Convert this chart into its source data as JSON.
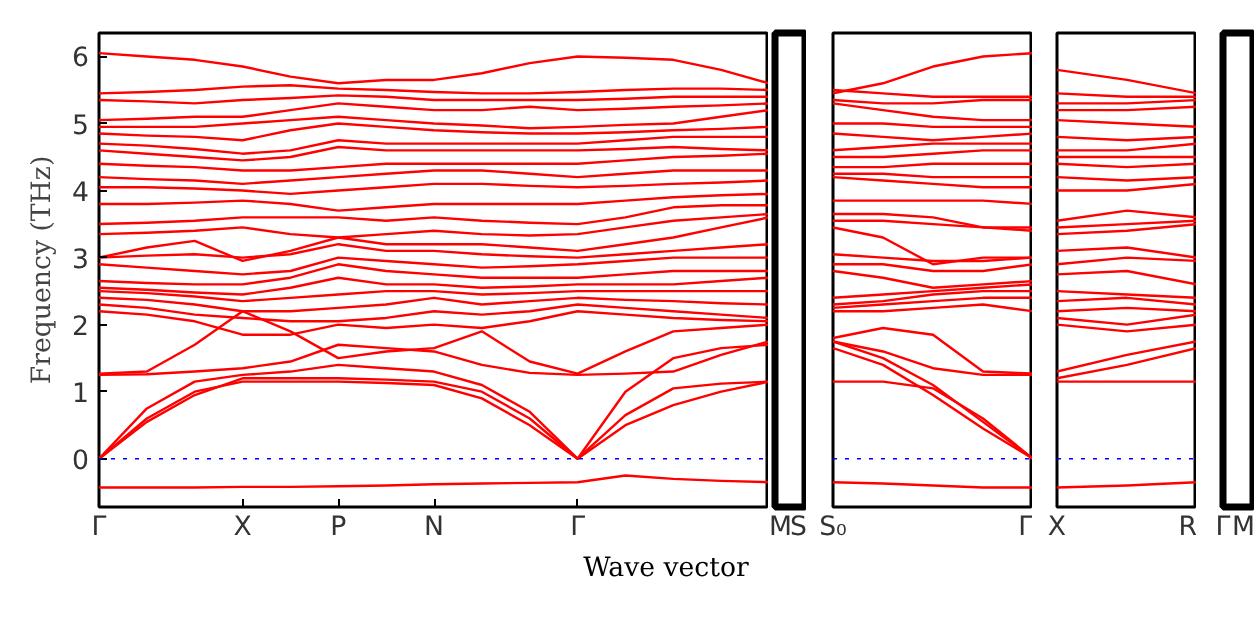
{
  "chart_data": [
    {
      "type": "line",
      "ylabel": "Frequency (THz)",
      "xlabel": "Wave vector",
      "ylim": [
        -0.72,
        6.35
      ],
      "yticks": [
        0,
        1,
        2,
        3,
        4,
        5,
        6
      ],
      "categories": [
        "Γ",
        null,
        null,
        "X",
        null,
        "P",
        null,
        "N",
        null,
        null,
        "Γ",
        null,
        null,
        null,
        null
      ],
      "grid": false,
      "line_style": "solid",
      "ref_lines": [
        {
          "axis": "y",
          "value": 0,
          "color": "#0000ff",
          "line_style": "dotted"
        }
      ],
      "series": [
        {
          "color": "#ff0000",
          "values": [
            -0.43,
            -0.43,
            -0.43,
            -0.42,
            -0.42,
            -0.41,
            -0.4,
            -0.38,
            -0.37,
            -0.36,
            -0.35,
            -0.25,
            -0.3,
            -0.33,
            -0.35
          ]
        },
        {
          "color": "#ff0000",
          "values": [
            0,
            0.6,
            1.0,
            1.15,
            1.15,
            1.15,
            1.13,
            1.1,
            0.9,
            0.5,
            0,
            0.5,
            0.8,
            1.0,
            1.15
          ]
        },
        {
          "color": "#ff0000",
          "values": [
            0,
            0.55,
            0.95,
            1.2,
            1.2,
            1.2,
            1.18,
            1.15,
            1.0,
            0.6,
            0,
            0.65,
            1.05,
            1.12,
            1.15
          ]
        },
        {
          "color": "#ff0000",
          "values": [
            0,
            0.75,
            1.15,
            1.25,
            1.3,
            1.4,
            1.35,
            1.3,
            1.1,
            0.7,
            0,
            1.0,
            1.5,
            1.65,
            1.7
          ]
        },
        {
          "color": "#ff0000",
          "values": [
            1.25,
            1.26,
            1.3,
            1.35,
            1.45,
            1.7,
            1.65,
            1.6,
            1.4,
            1.28,
            1.25,
            1.27,
            1.3,
            1.55,
            1.75
          ]
        },
        {
          "color": "#ff0000",
          "values": [
            1.27,
            1.3,
            1.7,
            2.2,
            1.9,
            1.5,
            1.6,
            1.65,
            1.9,
            1.45,
            1.27,
            1.6,
            1.9,
            1.95,
            2.0
          ]
        },
        {
          "color": "#ff0000",
          "values": [
            2.2,
            2.15,
            2.05,
            1.85,
            1.85,
            2.0,
            1.95,
            2.0,
            1.95,
            2.05,
            2.2,
            2.15,
            2.1,
            2.07,
            2.05
          ]
        },
        {
          "color": "#ff0000",
          "values": [
            2.3,
            2.25,
            2.15,
            2.1,
            2.05,
            2.05,
            2.1,
            2.2,
            2.15,
            2.2,
            2.3,
            2.25,
            2.2,
            2.15,
            2.1
          ]
        },
        {
          "color": "#ff0000",
          "values": [
            2.4,
            2.37,
            2.3,
            2.2,
            2.2,
            2.25,
            2.3,
            2.4,
            2.3,
            2.35,
            2.4,
            2.37,
            2.35,
            2.32,
            2.3
          ]
        },
        {
          "color": "#ff0000",
          "values": [
            2.5,
            2.47,
            2.42,
            2.35,
            2.4,
            2.45,
            2.5,
            2.5,
            2.45,
            2.47,
            2.5,
            2.5,
            2.5,
            2.5,
            2.5
          ]
        },
        {
          "color": "#ff0000",
          "values": [
            2.55,
            2.52,
            2.48,
            2.45,
            2.55,
            2.7,
            2.6,
            2.6,
            2.55,
            2.57,
            2.6,
            2.6,
            2.6,
            2.65,
            2.7
          ]
        },
        {
          "color": "#ff0000",
          "values": [
            2.65,
            2.62,
            2.6,
            2.6,
            2.7,
            2.9,
            2.8,
            2.75,
            2.7,
            2.7,
            2.7,
            2.75,
            2.8,
            2.8,
            2.8
          ]
        },
        {
          "color": "#ff0000",
          "values": [
            2.9,
            2.85,
            2.8,
            2.75,
            2.8,
            3.0,
            2.95,
            2.9,
            2.85,
            2.87,
            2.9,
            2.95,
            3.0,
            3.0,
            3.0
          ]
        },
        {
          "color": "#ff0000",
          "values": [
            3.0,
            3.03,
            3.05,
            3.0,
            3.05,
            3.2,
            3.1,
            3.1,
            3.05,
            3.02,
            3.0,
            3.05,
            3.1,
            3.15,
            3.2
          ]
        },
        {
          "color": "#ff0000",
          "values": [
            3.0,
            3.15,
            3.25,
            2.95,
            3.1,
            3.3,
            3.2,
            3.2,
            3.2,
            3.15,
            3.1,
            3.2,
            3.3,
            3.45,
            3.6
          ]
        },
        {
          "color": "#ff0000",
          "values": [
            3.35,
            3.37,
            3.4,
            3.45,
            3.35,
            3.3,
            3.35,
            3.4,
            3.35,
            3.33,
            3.35,
            3.45,
            3.55,
            3.6,
            3.65
          ]
        },
        {
          "color": "#ff0000",
          "values": [
            3.5,
            3.52,
            3.55,
            3.6,
            3.6,
            3.6,
            3.55,
            3.6,
            3.55,
            3.52,
            3.5,
            3.6,
            3.75,
            3.78,
            3.78
          ]
        },
        {
          "color": "#ff0000",
          "values": [
            3.8,
            3.8,
            3.82,
            3.85,
            3.8,
            3.7,
            3.75,
            3.8,
            3.8,
            3.8,
            3.8,
            3.85,
            3.9,
            3.93,
            3.95
          ]
        },
        {
          "color": "#ff0000",
          "values": [
            4.05,
            4.05,
            4.03,
            4.0,
            3.95,
            4.0,
            4.05,
            4.1,
            4.1,
            4.07,
            4.05,
            4.07,
            4.1,
            4.12,
            4.15
          ]
        },
        {
          "color": "#ff0000",
          "values": [
            4.2,
            4.17,
            4.15,
            4.1,
            4.15,
            4.2,
            4.25,
            4.3,
            4.3,
            4.25,
            4.2,
            4.25,
            4.3,
            4.3,
            4.3
          ]
        },
        {
          "color": "#ff0000",
          "values": [
            4.4,
            4.37,
            4.35,
            4.3,
            4.3,
            4.35,
            4.4,
            4.4,
            4.4,
            4.4,
            4.4,
            4.45,
            4.5,
            4.52,
            4.55
          ]
        },
        {
          "color": "#ff0000",
          "values": [
            4.6,
            4.55,
            4.5,
            4.45,
            4.5,
            4.65,
            4.6,
            4.6,
            4.6,
            4.6,
            4.6,
            4.62,
            4.65,
            4.62,
            4.6
          ]
        },
        {
          "color": "#ff0000",
          "values": [
            4.7,
            4.67,
            4.62,
            4.55,
            4.6,
            4.75,
            4.7,
            4.7,
            4.7,
            4.7,
            4.7,
            4.75,
            4.8,
            4.8,
            4.8
          ]
        },
        {
          "color": "#ff0000",
          "values": [
            4.85,
            4.82,
            4.8,
            4.75,
            4.9,
            5.0,
            4.95,
            4.9,
            4.87,
            4.85,
            4.85,
            4.87,
            4.9,
            4.92,
            4.95
          ]
        },
        {
          "color": "#ff0000",
          "values": [
            4.95,
            4.95,
            4.95,
            5.0,
            5.05,
            5.1,
            5.05,
            5.0,
            4.97,
            4.93,
            4.95,
            4.98,
            5.0,
            5.1,
            5.2
          ]
        },
        {
          "color": "#ff0000",
          "values": [
            5.05,
            5.07,
            5.1,
            5.1,
            5.2,
            5.3,
            5.25,
            5.2,
            5.2,
            5.25,
            5.2,
            5.22,
            5.25,
            5.27,
            5.3
          ]
        },
        {
          "color": "#ff0000",
          "values": [
            5.35,
            5.33,
            5.3,
            5.35,
            5.38,
            5.42,
            5.4,
            5.35,
            5.35,
            5.35,
            5.35,
            5.37,
            5.4,
            5.4,
            5.4
          ]
        },
        {
          "color": "#ff0000",
          "values": [
            5.45,
            5.47,
            5.5,
            5.55,
            5.57,
            5.52,
            5.5,
            5.47,
            5.45,
            5.45,
            5.47,
            5.5,
            5.52,
            5.52,
            5.5
          ]
        },
        {
          "color": "#ff0000",
          "values": [
            6.05,
            6.0,
            5.95,
            5.85,
            5.7,
            5.6,
            5.65,
            5.65,
            5.75,
            5.9,
            6.0,
            5.98,
            5.95,
            5.8,
            5.6
          ]
        }
      ]
    },
    {
      "type": "line",
      "ylim": [
        -0.72,
        6.35
      ],
      "tick_labels": "x",
      "categories": [
        "M",
        "S"
      ]
    },
    {
      "type": "line",
      "ylim": [
        -0.72,
        6.35
      ],
      "yticks": [
        0,
        1,
        2,
        3,
        4,
        5,
        6
      ],
      "tick_labels": "x",
      "categories": [
        "S₀",
        null,
        null,
        null,
        "Γ"
      ],
      "grid": false,
      "line_style": "solid",
      "ref_lines": [
        {
          "axis": "y",
          "value": 0,
          "color": "#0000ff",
          "line_style": "dotted"
        }
      ],
      "series": [
        {
          "color": "#ff0000",
          "values": [
            -0.35,
            -0.37,
            -0.4,
            -0.43,
            -0.43
          ]
        },
        {
          "color": "#ff0000",
          "values": [
            1.15,
            1.15,
            1.05,
            0.6,
            0
          ]
        },
        {
          "color": "#ff0000",
          "values": [
            1.75,
            1.5,
            1.1,
            0.55,
            0
          ]
        },
        {
          "color": "#ff0000",
          "values": [
            1.65,
            1.4,
            0.95,
            0.45,
            0
          ]
        },
        {
          "color": "#ff0000",
          "values": [
            1.75,
            1.6,
            1.35,
            1.25,
            1.25
          ]
        },
        {
          "color": "#ff0000",
          "values": [
            1.8,
            1.95,
            1.85,
            1.3,
            1.27
          ]
        },
        {
          "color": "#ff0000",
          "values": [
            2.2,
            2.2,
            2.25,
            2.3,
            2.2
          ]
        },
        {
          "color": "#ff0000",
          "values": [
            2.25,
            2.3,
            2.35,
            2.4,
            2.4
          ]
        },
        {
          "color": "#ff0000",
          "values": [
            2.3,
            2.35,
            2.45,
            2.5,
            2.5
          ]
        },
        {
          "color": "#ff0000",
          "values": [
            2.4,
            2.45,
            2.5,
            2.55,
            2.6
          ]
        },
        {
          "color": "#ff0000",
          "values": [
            2.8,
            2.7,
            2.55,
            2.6,
            2.65
          ]
        },
        {
          "color": "#ff0000",
          "values": [
            2.9,
            2.9,
            2.8,
            2.8,
            2.9
          ]
        },
        {
          "color": "#ff0000",
          "values": [
            3.05,
            3.0,
            2.95,
            2.95,
            3.0
          ]
        },
        {
          "color": "#ff0000",
          "values": [
            3.45,
            3.3,
            2.9,
            3.0,
            3.0
          ]
        },
        {
          "color": "#ff0000",
          "values": [
            3.55,
            3.55,
            3.5,
            3.45,
            3.4
          ]
        },
        {
          "color": "#ff0000",
          "values": [
            3.65,
            3.65,
            3.6,
            3.45,
            3.45
          ]
        },
        {
          "color": "#ff0000",
          "values": [
            3.85,
            3.85,
            3.85,
            3.85,
            3.8
          ]
        },
        {
          "color": "#ff0000",
          "values": [
            4.2,
            4.15,
            4.1,
            4.05,
            4.05
          ]
        },
        {
          "color": "#ff0000",
          "values": [
            4.25,
            4.25,
            4.2,
            4.2,
            4.2
          ]
        },
        {
          "color": "#ff0000",
          "values": [
            4.35,
            4.35,
            4.4,
            4.4,
            4.4
          ]
        },
        {
          "color": "#ff0000",
          "values": [
            4.5,
            4.5,
            4.55,
            4.6,
            4.6
          ]
        },
        {
          "color": "#ff0000",
          "values": [
            4.6,
            4.65,
            4.7,
            4.7,
            4.7
          ]
        },
        {
          "color": "#ff0000",
          "values": [
            4.85,
            4.8,
            4.75,
            4.8,
            4.85
          ]
        },
        {
          "color": "#ff0000",
          "values": [
            5.0,
            5.0,
            4.95,
            4.95,
            4.95
          ]
        },
        {
          "color": "#ff0000",
          "values": [
            5.3,
            5.2,
            5.1,
            5.05,
            5.05
          ]
        },
        {
          "color": "#ff0000",
          "values": [
            5.35,
            5.3,
            5.3,
            5.35,
            5.35
          ]
        },
        {
          "color": "#ff0000",
          "values": [
            5.5,
            5.45,
            5.4,
            5.4,
            5.4
          ]
        },
        {
          "color": "#ff0000",
          "values": [
            5.45,
            5.6,
            5.85,
            6.0,
            6.05
          ]
        }
      ]
    },
    {
      "type": "line",
      "ylim": [
        -0.72,
        6.35
      ],
      "yticks": [
        0,
        1,
        2,
        3,
        4,
        5,
        6
      ],
      "tick_labels": "x",
      "categories": [
        "X",
        null,
        "R"
      ],
      "grid": false,
      "line_style": "solid",
      "ref_lines": [
        {
          "axis": "y",
          "value": 0,
          "color": "#0000ff",
          "line_style": "dotted"
        }
      ],
      "series": [
        {
          "color": "#ff0000",
          "values": [
            -0.43,
            -0.4,
            -0.35
          ]
        },
        {
          "color": "#ff0000",
          "values": [
            1.15,
            1.15,
            1.15
          ]
        },
        {
          "color": "#ff0000",
          "values": [
            1.2,
            1.4,
            1.65
          ]
        },
        {
          "color": "#ff0000",
          "values": [
            1.3,
            1.55,
            1.75
          ]
        },
        {
          "color": "#ff0000",
          "values": [
            2.0,
            1.9,
            2.0
          ]
        },
        {
          "color": "#ff0000",
          "values": [
            2.1,
            2.0,
            2.15
          ]
        },
        {
          "color": "#ff0000",
          "values": [
            2.2,
            2.25,
            2.2
          ]
        },
        {
          "color": "#ff0000",
          "values": [
            2.35,
            2.4,
            2.3
          ]
        },
        {
          "color": "#ff0000",
          "values": [
            2.5,
            2.45,
            2.4
          ]
        },
        {
          "color": "#ff0000",
          "values": [
            2.75,
            2.8,
            2.6
          ]
        },
        {
          "color": "#ff0000",
          "values": [
            2.9,
            3.0,
            2.95
          ]
        },
        {
          "color": "#ff0000",
          "values": [
            3.1,
            3.15,
            3.0
          ]
        },
        {
          "color": "#ff0000",
          "values": [
            3.35,
            3.4,
            3.5
          ]
        },
        {
          "color": "#ff0000",
          "values": [
            3.45,
            3.5,
            3.55
          ]
        },
        {
          "color": "#ff0000",
          "values": [
            3.55,
            3.7,
            3.6
          ]
        },
        {
          "color": "#ff0000",
          "values": [
            4.0,
            4.0,
            4.1
          ]
        },
        {
          "color": "#ff0000",
          "values": [
            4.2,
            4.15,
            4.2
          ]
        },
        {
          "color": "#ff0000",
          "values": [
            4.4,
            4.35,
            4.4
          ]
        },
        {
          "color": "#ff0000",
          "values": [
            4.5,
            4.5,
            4.5
          ]
        },
        {
          "color": "#ff0000",
          "values": [
            4.6,
            4.6,
            4.7
          ]
        },
        {
          "color": "#ff0000",
          "values": [
            4.8,
            4.75,
            4.8
          ]
        },
        {
          "color": "#ff0000",
          "values": [
            5.05,
            5.0,
            4.95
          ]
        },
        {
          "color": "#ff0000",
          "values": [
            5.2,
            5.2,
            5.25
          ]
        },
        {
          "color": "#ff0000",
          "values": [
            5.3,
            5.3,
            5.35
          ]
        },
        {
          "color": "#ff0000",
          "values": [
            5.45,
            5.4,
            5.4
          ]
        },
        {
          "color": "#ff0000",
          "values": [
            5.8,
            5.65,
            5.45
          ]
        }
      ]
    },
    {
      "type": "line",
      "ylim": [
        -0.72,
        6.35
      ],
      "tick_labels": "x",
      "categories": [
        "Γ",
        "M"
      ]
    }
  ]
}
